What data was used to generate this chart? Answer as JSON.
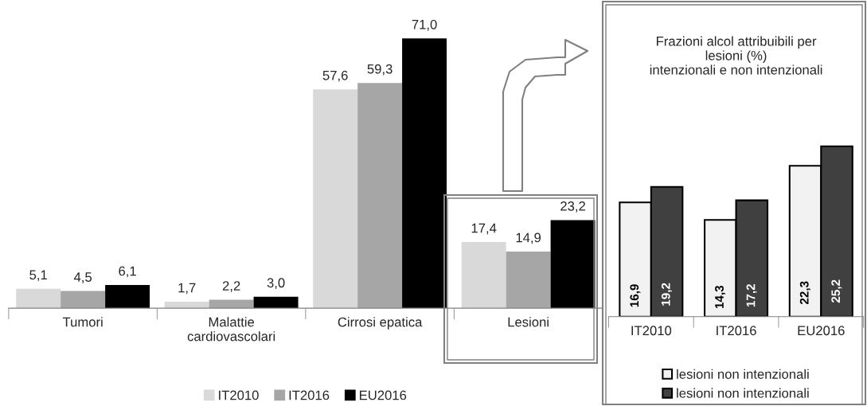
{
  "chart_data": [
    {
      "type": "bar",
      "categories": [
        "Tumori",
        "Malattie\ncardiovascolari",
        "Cirrosi epatica",
        "Lesioni"
      ],
      "tick_labels": "x",
      "legend": "bottom",
      "grid": false,
      "series": [
        {
          "name": "IT2010",
          "color": "#d9d9d9",
          "values": [
            5.1,
            1.7,
            57.6,
            17.4
          ],
          "value_labels": [
            "5,1",
            "1,7",
            "57,6",
            "17,4"
          ]
        },
        {
          "name": "IT2016",
          "color": "#a6a6a6",
          "values": [
            4.5,
            2.2,
            59.3,
            14.9
          ],
          "value_labels": [
            "4,5",
            "2,2",
            "59,3",
            "14,9"
          ]
        },
        {
          "name": "EU2016",
          "color": "#000000",
          "values": [
            6.1,
            3.0,
            71.0,
            23.2
          ],
          "value_labels": [
            "6,1",
            "3,0",
            "71,0",
            "23,2"
          ]
        }
      ]
    },
    {
      "type": "bar",
      "title": "Frazioni alcol attribuibili per\nlesioni (%)\nintenzionali e non intenzionali",
      "categories": [
        "IT2010",
        "IT2016",
        "EU2016"
      ],
      "tick_labels": "x",
      "legend": "bottom",
      "grid": false,
      "series": [
        {
          "name": "lesioni non intenzionali",
          "color": "#f2f2f2",
          "values": [
            16.9,
            14.3,
            22.3
          ],
          "value_labels": [
            "16,9",
            "14,3",
            "22,3"
          ]
        },
        {
          "name": "lesioni non intenzionali",
          "color": "#404040",
          "values": [
            19.2,
            17.2,
            25.2
          ],
          "value_labels": [
            "19,2",
            "17,2",
            "25,2"
          ]
        }
      ]
    }
  ]
}
